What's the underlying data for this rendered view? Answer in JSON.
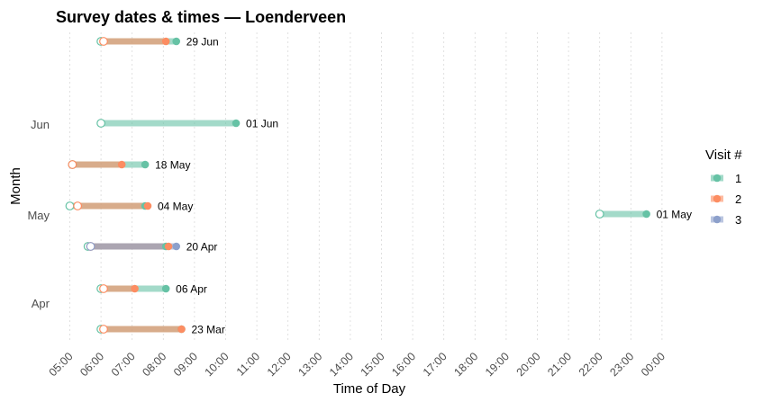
{
  "chart_data": {
    "type": "range-dot",
    "title": "Survey dates & times — Loenderveen",
    "xlabel": "Time of Day",
    "ylabel": "Month",
    "x_ticks": [
      "05:00",
      "06:00",
      "07:00",
      "08:00",
      "09:00",
      "10:00",
      "11:00",
      "12:00",
      "13:00",
      "14:00",
      "15:00",
      "16:00",
      "17:00",
      "18:00",
      "19:00",
      "20:00",
      "21:00",
      "22:00",
      "23:00",
      "00:00"
    ],
    "y_month_labels": [
      "Jun",
      "May",
      "Apr"
    ],
    "legend_title": "Visit #",
    "legend": [
      {
        "name": "1",
        "color": "#66c2a5"
      },
      {
        "name": "2",
        "color": "#fc8d62"
      },
      {
        "name": "3",
        "color": "#8da0cb"
      }
    ],
    "grid": true,
    "legend_position": "right",
    "surveys": [
      {
        "label": "29 Jun",
        "visits": [
          {
            "visit": 1,
            "start": "06:00",
            "end": "08:25"
          },
          {
            "visit": 2,
            "start": "06:05",
            "end": "08:05"
          }
        ]
      },
      {
        "label": "01 Jun",
        "visits": [
          {
            "visit": 1,
            "start": "06:00",
            "end": "10:20"
          }
        ]
      },
      {
        "label": "18 May",
        "visits": [
          {
            "visit": 1,
            "start": "05:05",
            "end": "07:25"
          },
          {
            "visit": 2,
            "start": "05:05",
            "end": "06:40"
          }
        ]
      },
      {
        "label": "04 May",
        "visits": [
          {
            "visit": 1,
            "start": "05:00",
            "end": "07:25"
          },
          {
            "visit": 2,
            "start": "05:15",
            "end": "07:30"
          }
        ]
      },
      {
        "label": "01 May",
        "visits": [
          {
            "visit": 1,
            "start": "22:00",
            "end": "23:30"
          }
        ]
      },
      {
        "label": "20 Apr",
        "visits": [
          {
            "visit": 1,
            "start": "05:35",
            "end": "08:05"
          },
          {
            "visit": 2,
            "start": "05:40",
            "end": "08:10"
          },
          {
            "visit": 3,
            "start": "05:40",
            "end": "08:25"
          }
        ]
      },
      {
        "label": "06 Apr",
        "visits": [
          {
            "visit": 1,
            "start": "06:00",
            "end": "08:05"
          },
          {
            "visit": 2,
            "start": "06:05",
            "end": "07:05"
          }
        ]
      },
      {
        "label": "23 Mar",
        "visits": [
          {
            "visit": 1,
            "start": "06:00",
            "end": "08:35"
          },
          {
            "visit": 2,
            "start": "06:05",
            "end": "08:35"
          }
        ]
      }
    ]
  }
}
